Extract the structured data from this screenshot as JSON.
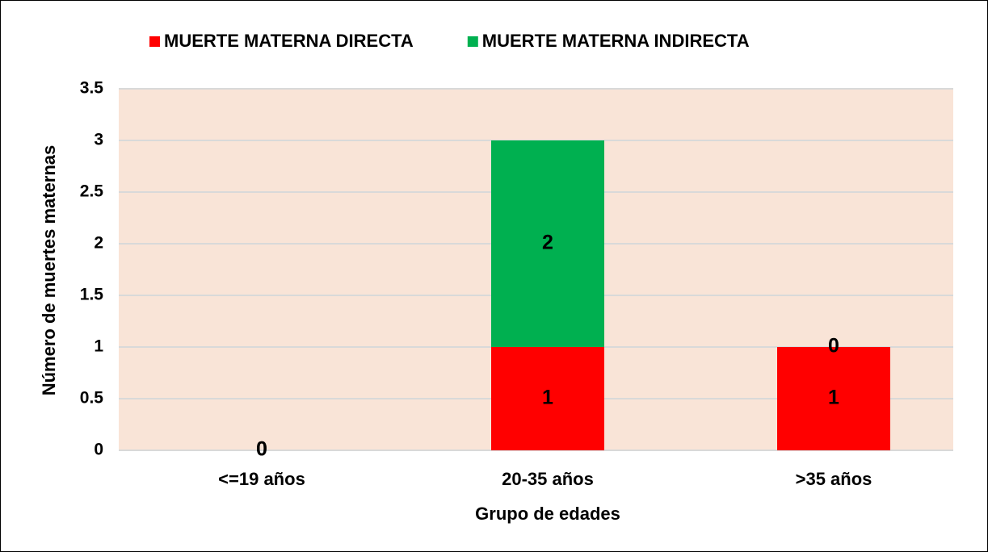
{
  "chart_data": {
    "type": "stacked_bar",
    "x_label": "Grupo de edades",
    "y_label": "Número de muertes maternas",
    "categories": [
      "<=19 años",
      "20-35 años",
      ">35 años"
    ],
    "series": [
      {
        "name": "MUERTE MATERNA DIRECTA",
        "color": "#ff0000",
        "values": [
          0,
          1,
          1
        ]
      },
      {
        "name": "MUERTE MATERNA INDIRECTA",
        "color": "#00b050",
        "values": [
          0,
          2,
          0
        ]
      }
    ],
    "ylim": [
      0,
      3.5
    ],
    "yticks": [
      0,
      0.5,
      1,
      1.5,
      2,
      2.5,
      3,
      3.5
    ],
    "grid": true,
    "legend": "top"
  }
}
